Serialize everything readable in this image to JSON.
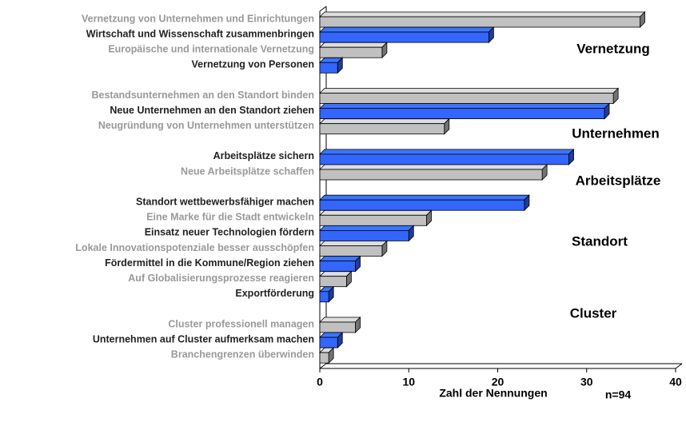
{
  "chart_data": {
    "type": "bar",
    "orientation": "horizontal",
    "categories": [
      "Vernetzung von Unternehmen und Einrichtungen",
      "Wirtschaft und Wissenschaft zusammenbringen",
      "Europäische und internationale Vernetzung",
      "Vernetzung von Personen",
      null,
      "Bestandsunternehmen an den Standort binden",
      "Neue Unternehmen an den Standort ziehen",
      "Neugründung von Unternehmen unterstützen",
      null,
      "Arbeitsplätze sichern",
      "Neue Arbeitsplätze schaffen",
      null,
      "Standort wettbewerbsfähiger machen",
      "Eine Marke für die Stadt entwickeln",
      "Einsatz neuer Technologien fördern",
      "Lokale Innovationspotenziale besser ausschöpfen",
      "Fördermittel in die Kommune/Region ziehen",
      "Auf Globalisierungsprozesse reagieren",
      "Exportförderung",
      null,
      "Cluster professionell managen",
      "Unternehmen auf Cluster aufmerksam machen",
      "Branchengrenzen überwinden"
    ],
    "values": [
      36,
      19,
      7,
      2,
      null,
      33,
      32,
      14,
      null,
      28,
      25,
      null,
      23,
      12,
      10,
      7,
      4,
      3,
      1,
      null,
      4,
      2,
      1
    ],
    "colors": [
      "#c0c0c0",
      "#3366ff",
      "#c0c0c0",
      "#3366ff",
      null,
      "#c0c0c0",
      "#3366ff",
      "#c0c0c0",
      null,
      "#3366ff",
      "#c0c0c0",
      null,
      "#3366ff",
      "#c0c0c0",
      "#3366ff",
      "#c0c0c0",
      "#3366ff",
      "#c0c0c0",
      "#3366ff",
      null,
      "#c0c0c0",
      "#3366ff",
      "#c0c0c0"
    ],
    "annotations": [
      "Vernetzung",
      "Unternehmen",
      "Arbeitsplätze",
      "Standort",
      "Cluster"
    ],
    "xlabel": "Zahl der Nennungen",
    "note": "n=94",
    "xlim": [
      0,
      40
    ],
    "xticks": [
      0,
      10,
      20,
      30,
      40
    ]
  }
}
